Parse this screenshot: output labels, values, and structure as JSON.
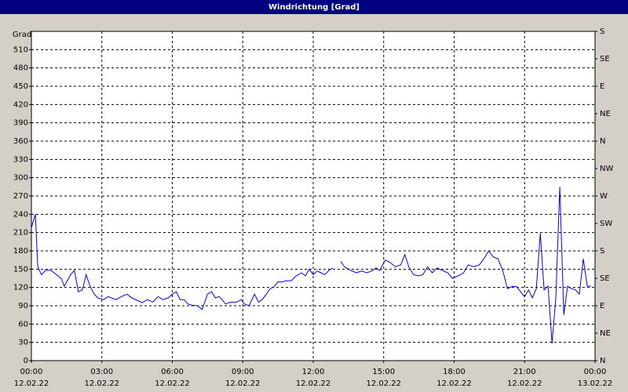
{
  "chart_data": {
    "type": "line",
    "title": "Windrichtung [Grad]",
    "ylabel": "Grad",
    "color": "#0000ff",
    "grid": true,
    "xlim": [
      0,
      24
    ],
    "xticks": [
      {
        "value": 0,
        "label": "00:00"
      },
      {
        "value": 3,
        "label": "03:00"
      },
      {
        "value": 6,
        "label": "06:00"
      },
      {
        "value": 9,
        "label": "09:00"
      },
      {
        "value": 12,
        "label": "12:00"
      },
      {
        "value": 15,
        "label": "15:00"
      },
      {
        "value": 18,
        "label": "18:00"
      },
      {
        "value": 21,
        "label": "21:00"
      },
      {
        "value": 24,
        "label": "00:00"
      }
    ],
    "xtick_dates": [
      "12.02.22",
      "12.02.22",
      "12.02.22",
      "12.02.22",
      "12.02.22",
      "12.02.22",
      "12.02.22",
      "12.02.22",
      "13.02.22"
    ],
    "ylim": [
      0,
      540
    ],
    "yticks": [
      0,
      30,
      60,
      90,
      120,
      150,
      180,
      210,
      240,
      270,
      300,
      330,
      360,
      390,
      420,
      450,
      480,
      510
    ],
    "y2lim": [
      0,
      540
    ],
    "y2ticks": [
      {
        "value": 0,
        "label": "N"
      },
      {
        "value": 45,
        "label": "NE"
      },
      {
        "value": 90,
        "label": "E"
      },
      {
        "value": 135,
        "label": "SE"
      },
      {
        "value": 180,
        "label": "S"
      },
      {
        "value": 225,
        "label": "SW"
      },
      {
        "value": 270,
        "label": "W"
      },
      {
        "value": 315,
        "label": "NW"
      },
      {
        "value": 360,
        "label": "N"
      },
      {
        "value": 405,
        "label": "NE"
      },
      {
        "value": 450,
        "label": "E"
      },
      {
        "value": 495,
        "label": "SE"
      },
      {
        "value": 540,
        "label": "S"
      }
    ],
    "x": [
      0,
      0.17,
      0.27,
      0.43,
      0.6,
      0.83,
      1.07,
      1.27,
      1.4,
      1.67,
      1.83,
      2,
      2.17,
      2.33,
      2.5,
      2.67,
      2.83,
      3.07,
      3.27,
      3.4,
      3.6,
      3.83,
      4.07,
      4.27,
      4.5,
      4.73,
      4.93,
      5.17,
      5.4,
      5.6,
      5.83,
      6,
      6.17,
      6.33,
      6.5,
      6.67,
      6.83,
      7.07,
      7.27,
      7.5,
      7.67,
      7.83,
      8,
      8.27,
      8.5,
      8.73,
      8.93,
      9.07,
      9.27,
      9.5,
      9.67,
      9.83,
      10,
      10.17,
      10.33,
      10.5,
      10.67,
      10.83,
      11.07,
      11.27,
      11.5,
      11.67,
      11.83,
      12,
      12.17,
      12.33,
      12.5,
      12.67,
      12.83,
      12.95,
      13.17,
      13.33,
      13.6,
      13.83,
      14.07,
      14.27,
      14.5,
      14.67,
      14.83,
      15.07,
      15.27,
      15.5,
      15.73,
      15.9,
      16.07,
      16.27,
      16.5,
      16.67,
      16.87,
      17.07,
      17.27,
      17.5,
      17.73,
      17.93,
      18.17,
      18.4,
      18.6,
      18.83,
      19.07,
      19.27,
      19.47,
      19.67,
      19.87,
      20.07,
      20.27,
      20.5,
      20.67,
      20.83,
      21,
      21.17,
      21.33,
      21.5,
      21.67,
      21.83,
      22,
      22.17,
      22.33,
      22.5,
      22.67,
      22.83,
      23,
      23.17,
      23.33,
      23.5,
      23.67,
      23.83
    ],
    "values": [
      218,
      240,
      154,
      141,
      148,
      148,
      141,
      135,
      122,
      141,
      148,
      113,
      116,
      141,
      122,
      109,
      103,
      100,
      105,
      103,
      100,
      105,
      109,
      103,
      99,
      95,
      100,
      96,
      105,
      100,
      103,
      109,
      113,
      100,
      100,
      93,
      91,
      90,
      84,
      109,
      113,
      103,
      105,
      93,
      96,
      96,
      100,
      93,
      90,
      109,
      96,
      100,
      109,
      118,
      121,
      129,
      129,
      131,
      131,
      139,
      144,
      139,
      150,
      141,
      147,
      144,
      141,
      148,
      152,
      null,
      163,
      154,
      148,
      144,
      147,
      144,
      147,
      152,
      148,
      165,
      161,
      154,
      157,
      174,
      154,
      141,
      139,
      141,
      154,
      144,
      152,
      148,
      144,
      135,
      139,
      144,
      157,
      154,
      157,
      167,
      180,
      170,
      167,
      148,
      118,
      122,
      121,
      113,
      105,
      116,
      103,
      118,
      209,
      116,
      122,
      28,
      103,
      285,
      75,
      122,
      118,
      116,
      109,
      167,
      122,
      122
    ]
  }
}
